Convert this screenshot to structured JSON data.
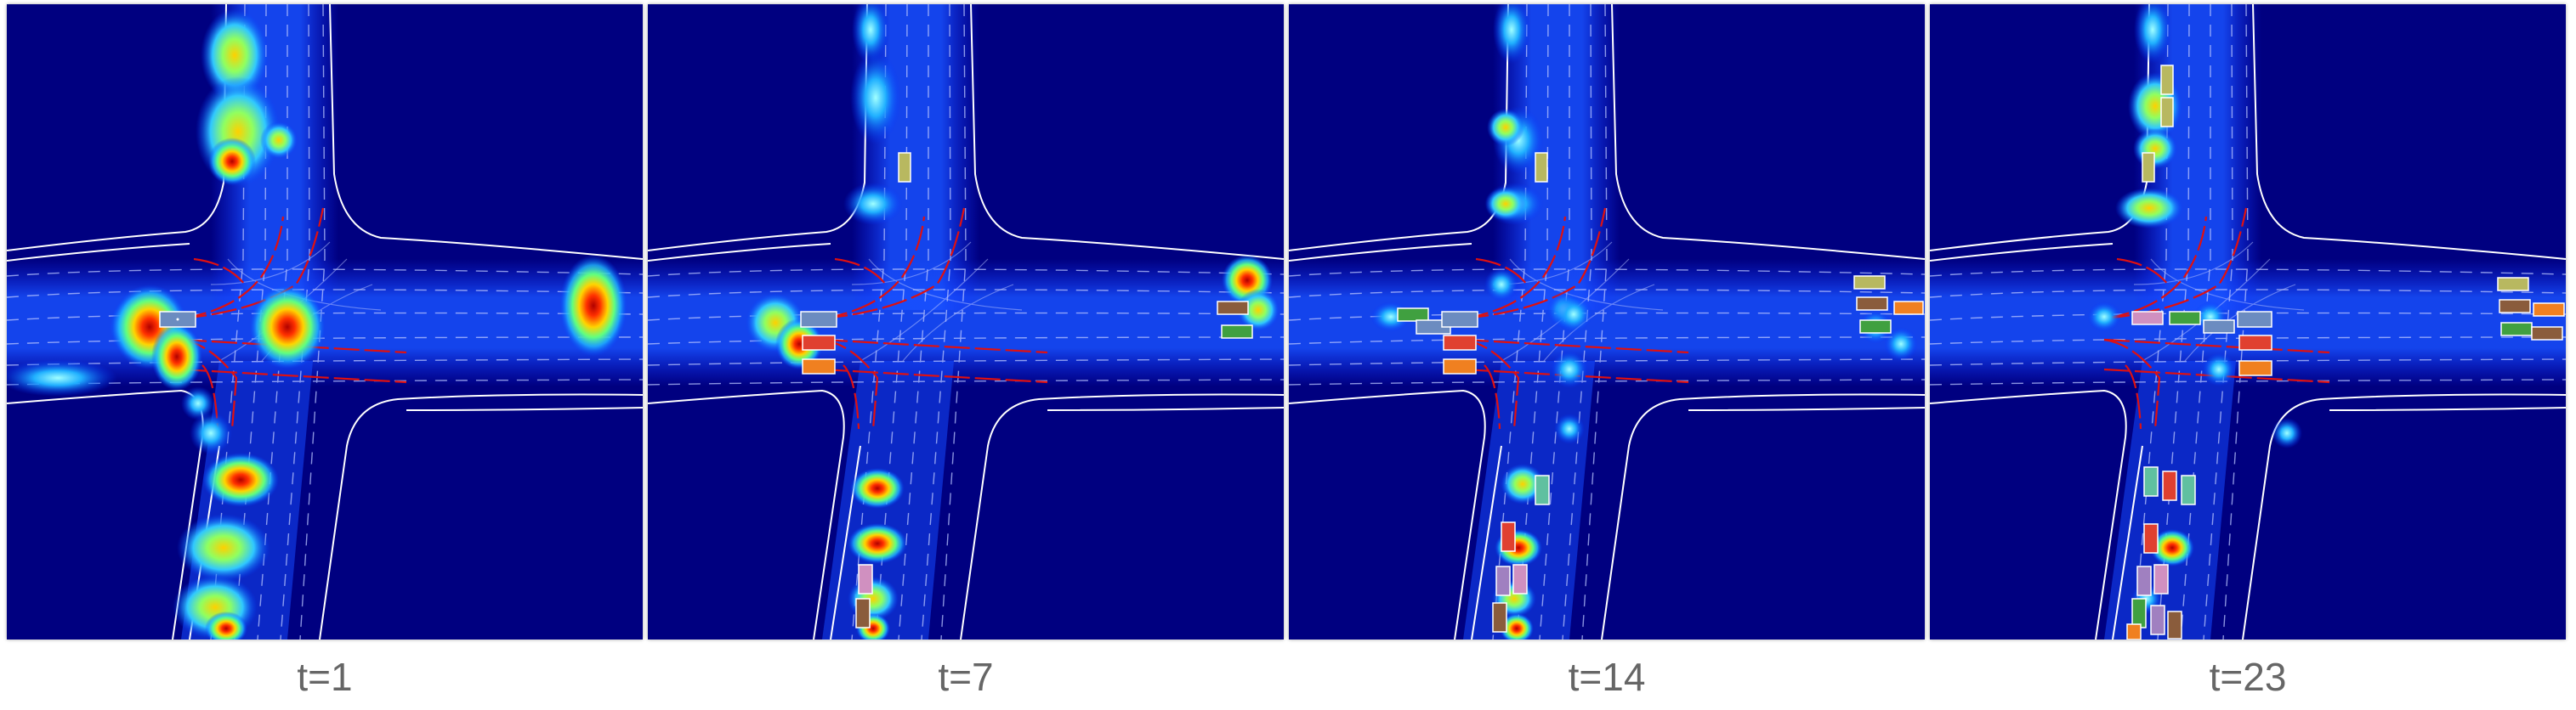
{
  "panels": [
    {
      "label": "t=1"
    },
    {
      "label": "t=7"
    },
    {
      "label": "t=14"
    },
    {
      "label": "t=23"
    }
  ],
  "colors": {
    "background": "#000080",
    "road_line": "#ffffff",
    "lane_line": "#b8c4ff",
    "route_line": "#e01010",
    "heat_hot": "#d00000",
    "heat_warm": "#ffd000",
    "heat_mid": "#40ff90",
    "heat_cool": "#20c0ff"
  },
  "heat_colormap": "jet",
  "icons": [
    "heatmap-blob",
    "vehicle-box",
    "lane-line",
    "route-line"
  ]
}
